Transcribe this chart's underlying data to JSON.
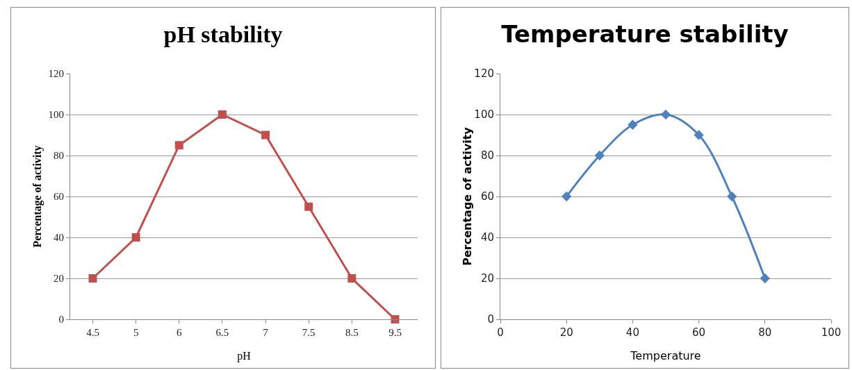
{
  "chart_data": [
    {
      "type": "line",
      "title": "pH stability",
      "xlabel": "pH",
      "ylabel": "Percentage of activity",
      "categories": [
        "4.5",
        "5",
        "6",
        "6.5",
        "7",
        "7.5",
        "8.5",
        "9.5"
      ],
      "series": [
        {
          "color": "#c0504d",
          "values": [
            20,
            40,
            85,
            100,
            90,
            55,
            20,
            0
          ]
        }
      ],
      "ylim": [
        0,
        120
      ],
      "yticks": [
        0,
        20,
        40,
        60,
        80,
        100,
        120
      ],
      "grid": "y",
      "marker": "square",
      "legend": false
    },
    {
      "type": "line",
      "title": "Temperature stability",
      "xlabel": "Temperature",
      "ylabel": "Percentage of activity",
      "x": [
        20,
        30,
        40,
        50,
        60,
        70,
        80
      ],
      "series": [
        {
          "color": "#4f81bd",
          "values": [
            60,
            80,
            95,
            100,
            90,
            60,
            20
          ]
        }
      ],
      "xlim": [
        0,
        100
      ],
      "xticks": [
        0,
        20,
        40,
        60,
        80,
        100
      ],
      "ylim": [
        0,
        120
      ],
      "yticks": [
        0,
        20,
        40,
        60,
        80,
        100,
        120
      ],
      "grid": "y",
      "marker": "diamond",
      "legend": false
    }
  ]
}
